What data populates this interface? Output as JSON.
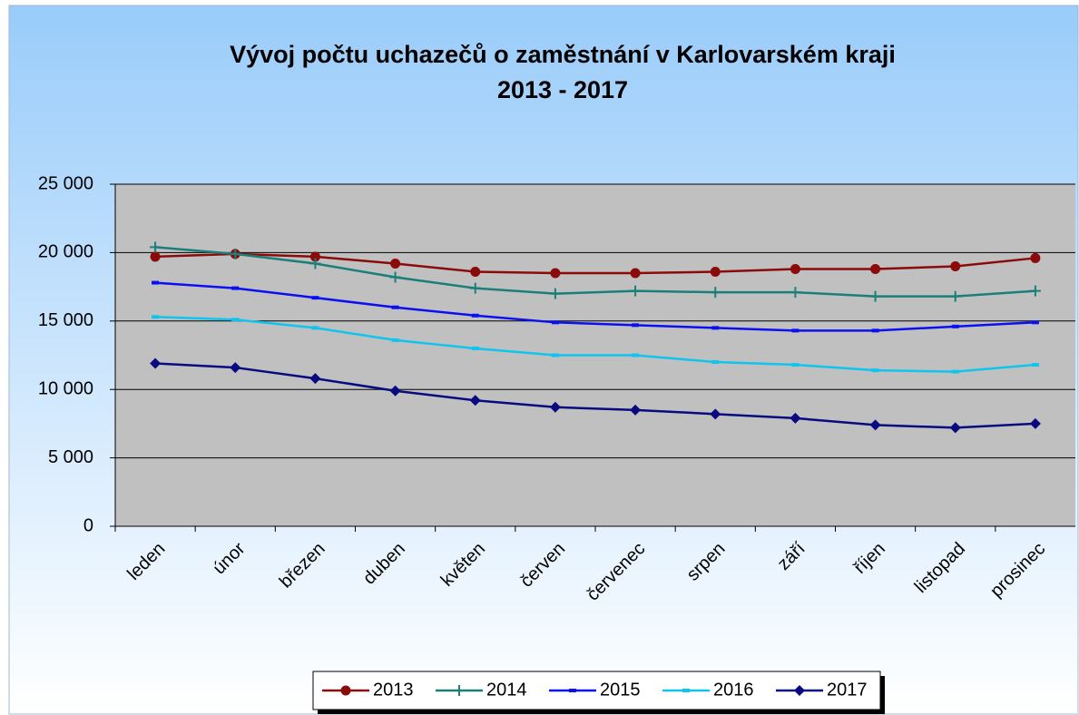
{
  "chart_data": {
    "type": "line",
    "title": [
      "Vývoj počtu uchazečů o zaměstnání v Karlovarském kraji",
      "2013 - 2017"
    ],
    "categories": [
      "leden",
      "únor",
      "březen",
      "duben",
      "květen",
      "červen",
      "červenec",
      "srpen",
      "září",
      "říjen",
      "listopad",
      "prosinec"
    ],
    "series": [
      {
        "name": "2013",
        "color": "#8b0a0a",
        "marker": "circle",
        "values": [
          19700,
          19900,
          19700,
          19200,
          18600,
          18500,
          18500,
          18600,
          18800,
          18800,
          19000,
          19600
        ]
      },
      {
        "name": "2014",
        "color": "#1a7f78",
        "marker": "plus",
        "values": [
          20400,
          19900,
          19200,
          18200,
          17400,
          17000,
          17200,
          17100,
          17100,
          16800,
          16800,
          17200
        ]
      },
      {
        "name": "2015",
        "color": "#0a10f0",
        "marker": "dash",
        "values": [
          17800,
          17400,
          16700,
          16000,
          15400,
          14900,
          14700,
          14500,
          14300,
          14300,
          14600,
          14900
        ]
      },
      {
        "name": "2016",
        "color": "#10c4f0",
        "marker": "dash",
        "values": [
          15300,
          15100,
          14500,
          13600,
          13000,
          12500,
          12500,
          12000,
          11800,
          11400,
          11300,
          11800
        ]
      },
      {
        "name": "2017",
        "color": "#0a0a80",
        "marker": "diamond",
        "values": [
          11900,
          11600,
          10800,
          9900,
          9200,
          8700,
          8500,
          8200,
          7900,
          7400,
          7200,
          7500
        ]
      }
    ],
    "ylim": [
      0,
      25000
    ],
    "yticks": [
      0,
      {
        "value": 5000,
        "label": "5 000"
      },
      {
        "value": 10000,
        "label": "10 000"
      },
      {
        "value": 15000,
        "label": "15 000"
      },
      {
        "value": 20000,
        "label": "20 000"
      },
      {
        "value": 25000,
        "label": "25 000"
      }
    ],
    "grid": true,
    "legend": "bottom"
  }
}
